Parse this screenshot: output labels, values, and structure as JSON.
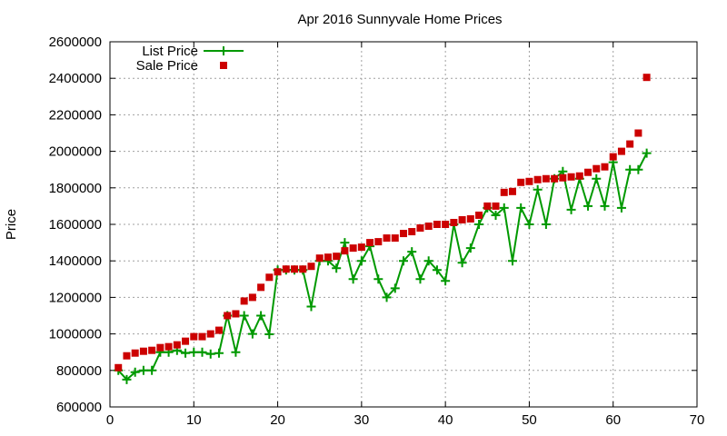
{
  "chart_data": {
    "type": "line",
    "title": "Apr 2016 Sunnyvale Home Prices",
    "xlabel": "",
    "ylabel": "Price",
    "xlim": [
      0,
      70
    ],
    "ylim": [
      600000,
      2600000
    ],
    "xticks": [
      0,
      10,
      20,
      30,
      40,
      50,
      60,
      70
    ],
    "yticks": [
      600000,
      800000,
      1000000,
      1200000,
      1400000,
      1600000,
      1800000,
      2000000,
      2200000,
      2400000,
      2600000
    ],
    "grid": true,
    "legend_position": "top-left",
    "series": [
      {
        "name": "List Price",
        "style": "linespoints",
        "marker": "plus",
        "color": "#009900",
        "x": [
          1,
          2,
          3,
          4,
          5,
          6,
          7,
          8,
          9,
          10,
          11,
          12,
          13,
          14,
          15,
          16,
          17,
          18,
          19,
          20,
          21,
          22,
          23,
          24,
          25,
          26,
          27,
          28,
          29,
          30,
          31,
          32,
          33,
          34,
          35,
          36,
          37,
          38,
          39,
          40,
          41,
          42,
          43,
          44,
          45,
          46,
          47,
          48,
          49,
          50,
          51,
          52,
          53,
          54,
          55,
          56,
          57,
          58,
          59,
          60,
          61,
          62,
          63,
          64
        ],
        "values": [
          800000,
          750000,
          790000,
          800000,
          800000,
          900000,
          900000,
          910000,
          895000,
          900000,
          900000,
          890000,
          895000,
          1100000,
          900000,
          1100000,
          1000000,
          1100000,
          998000,
          1350000,
          1350000,
          1350000,
          1350000,
          1150000,
          1400000,
          1400000,
          1360000,
          1500000,
          1300000,
          1400000,
          1480000,
          1300000,
          1200000,
          1250000,
          1400000,
          1450000,
          1300000,
          1400000,
          1350000,
          1290000,
          1600000,
          1390000,
          1470000,
          1600000,
          1690000,
          1650000,
          1690000,
          1400000,
          1690000,
          1600000,
          1790000,
          1600000,
          1850000,
          1890000,
          1680000,
          1850000,
          1700000,
          1850000,
          1700000,
          1940000,
          1690000,
          1900000,
          1900000,
          1990000
        ]
      },
      {
        "name": "Sale Price",
        "style": "points",
        "marker": "square",
        "color": "#cc0000",
        "x": [
          1,
          2,
          3,
          4,
          5,
          6,
          7,
          8,
          9,
          10,
          11,
          12,
          13,
          14,
          15,
          16,
          17,
          18,
          19,
          20,
          21,
          22,
          23,
          24,
          25,
          26,
          27,
          28,
          29,
          30,
          31,
          32,
          33,
          34,
          35,
          36,
          37,
          38,
          39,
          40,
          41,
          42,
          43,
          44,
          45,
          46,
          47,
          48,
          49,
          50,
          51,
          52,
          53,
          54,
          55,
          56,
          57,
          58,
          59,
          60,
          61,
          62,
          63,
          64
        ],
        "values": [
          815000,
          880000,
          895000,
          905000,
          910000,
          925000,
          930000,
          940000,
          960000,
          985000,
          985000,
          1000000,
          1020000,
          1100000,
          1110000,
          1180000,
          1200000,
          1255000,
          1310000,
          1340000,
          1355000,
          1355000,
          1355000,
          1370000,
          1415000,
          1420000,
          1425000,
          1455000,
          1470000,
          1475000,
          1500000,
          1505000,
          1525000,
          1525000,
          1550000,
          1560000,
          1580000,
          1590000,
          1600000,
          1600000,
          1610000,
          1625000,
          1630000,
          1650000,
          1700000,
          1700000,
          1775000,
          1780000,
          1830000,
          1835000,
          1845000,
          1850000,
          1850000,
          1855000,
          1860000,
          1865000,
          1885000,
          1905000,
          1915000,
          1970000,
          2000000,
          2040000,
          2100000,
          2405000
        ]
      }
    ]
  }
}
